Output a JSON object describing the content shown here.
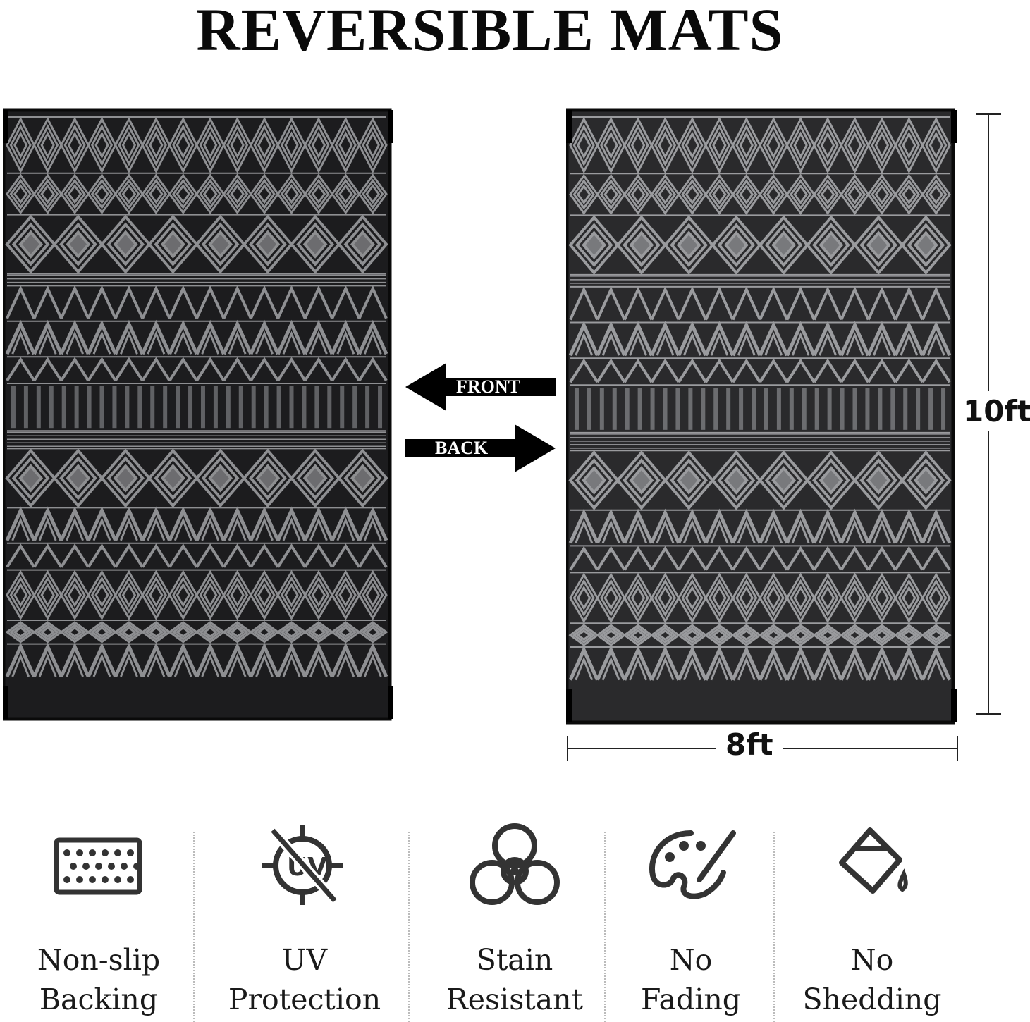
{
  "title": "REVERSIBLE MATS",
  "arrows": {
    "front": "FRONT",
    "back": "BACK"
  },
  "dimensions": {
    "length": "10ft",
    "width": "8ft"
  },
  "colors": {
    "rug_dark": "#1c1c1e",
    "rug_light": "#8e8f92",
    "text": "#111111"
  },
  "features": [
    {
      "icon": "non-slip-backing-icon",
      "line1": "Non-slip",
      "line2": "Backing"
    },
    {
      "icon": "uv-protection-icon",
      "line1": "UV",
      "line2": "Protection"
    },
    {
      "icon": "biohazard-icon",
      "line1": "Stain",
      "line2": "Resistant"
    },
    {
      "icon": "palette-icon",
      "line1": "No",
      "line2": "Fading"
    },
    {
      "icon": "paint-bucket-icon",
      "line1": "No",
      "line2": "Shedding"
    }
  ]
}
